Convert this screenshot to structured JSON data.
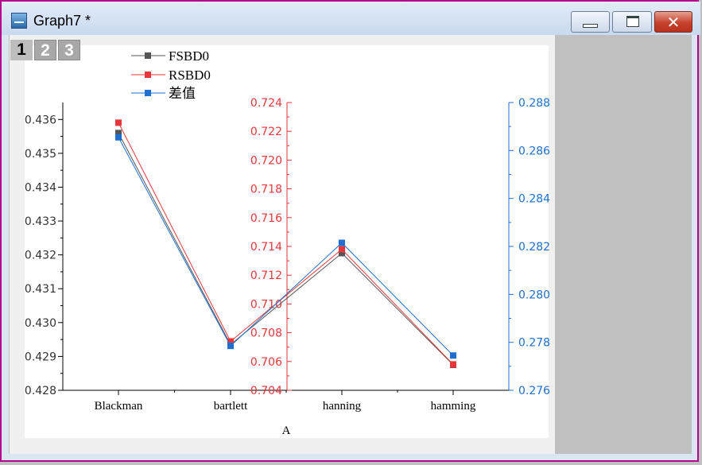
{
  "window": {
    "title": "Graph7 *"
  },
  "layers": [
    "1",
    "2",
    "3"
  ],
  "chart_data": {
    "type": "line",
    "categories": [
      "Blackman",
      "bartlett",
      "hanning",
      "hamming"
    ],
    "xlabel": "A",
    "series": [
      {
        "name": "FSBD0",
        "color": "#555555",
        "axis": "left",
        "values": [
          0.4356,
          0.42935,
          0.43205,
          0.42875
        ]
      },
      {
        "name": "RSBD0",
        "color": "#e8363b",
        "axis": "middle",
        "values": [
          0.7226,
          0.7074,
          0.7138,
          0.7058
        ]
      },
      {
        "name": "差值",
        "color": "#1e6fd0",
        "axis": "right",
        "values": [
          0.28655,
          0.27785,
          0.28215,
          0.27745
        ]
      }
    ],
    "axes": {
      "left": {
        "min": 0.428,
        "max": 0.4365,
        "ticks": [
          "0.428",
          "0.429",
          "0.430",
          "0.431",
          "0.432",
          "0.433",
          "0.434",
          "0.435",
          "0.436"
        ],
        "color": "#000000"
      },
      "middle": {
        "min": 0.704,
        "max": 0.724,
        "ticks": [
          "0.704",
          "0.706",
          "0.708",
          "0.710",
          "0.712",
          "0.714",
          "0.716",
          "0.718",
          "0.720",
          "0.722",
          "0.724"
        ],
        "color": "#e8363b"
      },
      "right": {
        "min": 0.276,
        "max": 0.288,
        "ticks": [
          "0.276",
          "0.278",
          "0.280",
          "0.282",
          "0.284",
          "0.286",
          "0.288"
        ],
        "color": "#1e6fd0"
      }
    },
    "legend": "top-left",
    "grid": false
  }
}
